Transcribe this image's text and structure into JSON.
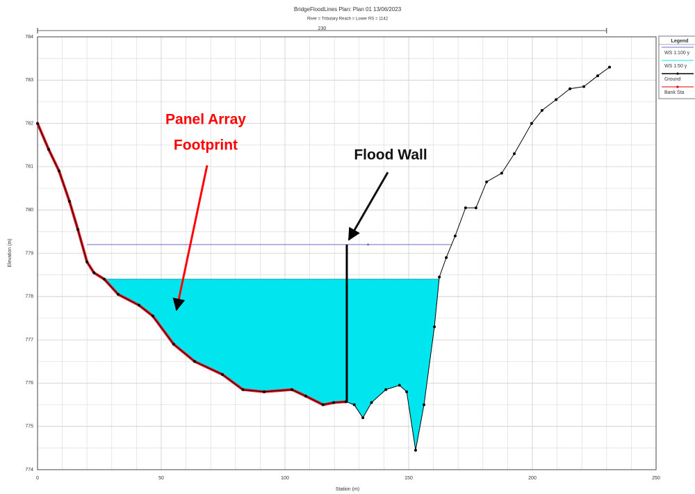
{
  "chart_data": {
    "type": "line",
    "title": "BridgeFloodLines      Plan: Plan 01     13/06/2023",
    "subtitle": "River = Tributary   Reach = Lower     RS = 1142",
    "xlabel": "Station (m)",
    "ylabel": "Elevation (m)",
    "xlim": [
      0,
      250
    ],
    "ylim": [
      774,
      784
    ],
    "xticks": [
      0,
      50,
      100,
      150,
      200,
      250
    ],
    "yticks": [
      774,
      775,
      776,
      777,
      778,
      779,
      780,
      781,
      782,
      783,
      784
    ],
    "grid": true,
    "legend_title": "Legend",
    "dimension": {
      "label": "230",
      "x": [
        0,
        230
      ]
    },
    "series": [
      {
        "name": "WS 1:100 y",
        "color": "#6a6ad0",
        "x": [
          20,
          167.5
        ],
        "values": [
          779.2,
          779.2
        ]
      },
      {
        "name": "WS 1:50 y",
        "color": "#00e5ee",
        "x": [
          27,
          162.4
        ],
        "values": [
          778.4,
          778.4
        ]
      },
      {
        "name": "Ground",
        "color": "#000000",
        "x": [
          0,
          4.5,
          8.7,
          12.9,
          16.3,
          20,
          22.8,
          27,
          32.6,
          41,
          46.6,
          55,
          63.5,
          74.7,
          83,
          91.6,
          102.8,
          108.4,
          115.4,
          119.7,
          124.7,
          128,
          131.5,
          135,
          140.8,
          146.3,
          149.2,
          152.8,
          156.2,
          160.4,
          162.4,
          165.2,
          168.8,
          173,
          177.2,
          181.5,
          187.6,
          192.7,
          199.7,
          203.9,
          209.6,
          215.2,
          220.8,
          226.4,
          231.2
        ],
        "values": [
          782,
          781.4,
          780.9,
          780.2,
          779.55,
          778.8,
          778.55,
          778.4,
          778.05,
          777.8,
          777.55,
          776.9,
          776.5,
          776.2,
          775.85,
          775.8,
          775.85,
          775.7,
          775.5,
          775.55,
          775.57,
          775.5,
          775.2,
          775.55,
          775.85,
          775.95,
          775.8,
          774.45,
          775.5,
          777.3,
          778.45,
          778.9,
          779.4,
          780.05,
          780.05,
          780.65,
          780.85,
          781.3,
          782,
          782.3,
          782.55,
          782.8,
          782.85,
          783.1,
          783.3
        ]
      },
      {
        "name": "Bank Sta",
        "color": "#e00000",
        "x": [],
        "values": []
      }
    ],
    "flood_wall": {
      "x": 125,
      "bottom": 775.57,
      "top": 779.2
    },
    "footprint_end": 125,
    "annotations": [
      "Panel Array",
      "Footprint",
      "Flood Wall"
    ]
  }
}
